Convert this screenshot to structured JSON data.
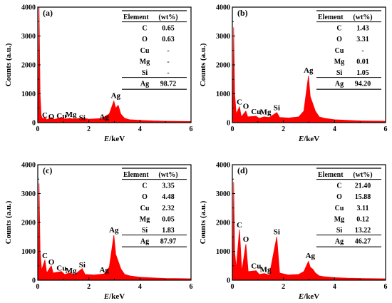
{
  "chart_data": [
    {
      "type": "area",
      "label": "(a)",
      "xlabel_italic": "E",
      "xlabel_unit": "/keV",
      "ylabel": "Counts (a.u.)",
      "xlim": [
        0,
        6
      ],
      "ylim": [
        0,
        4000
      ],
      "xticks": [
        0,
        2,
        4,
        6
      ],
      "yticks": [
        0,
        1000,
        2000,
        3000,
        4000
      ],
      "color": "#ff0000",
      "spectrum": [
        [
          0,
          0
        ],
        [
          0.02,
          200
        ],
        [
          0.05,
          4000
        ],
        [
          0.09,
          1000
        ],
        [
          0.13,
          250
        ],
        [
          0.2,
          120
        ],
        [
          0.28,
          200
        ],
        [
          0.35,
          100
        ],
        [
          0.53,
          180
        ],
        [
          0.65,
          110
        ],
        [
          0.93,
          180
        ],
        [
          1.05,
          120
        ],
        [
          1.25,
          150
        ],
        [
          1.4,
          120
        ],
        [
          1.74,
          160
        ],
        [
          2.0,
          120
        ],
        [
          2.5,
          140
        ],
        [
          2.8,
          300
        ],
        [
          2.98,
          750
        ],
        [
          3.05,
          500
        ],
        [
          3.15,
          600
        ],
        [
          3.25,
          300
        ],
        [
          3.4,
          150
        ],
        [
          3.6,
          100
        ],
        [
          4,
          80
        ],
        [
          4.5,
          60
        ],
        [
          5,
          50
        ],
        [
          6,
          40
        ]
      ],
      "peaks": [
        {
          "text": "C",
          "x": 0.28,
          "y": 120
        },
        {
          "text": "O",
          "x": 0.53,
          "y": 80
        },
        {
          "text": "Cu",
          "x": 0.93,
          "y": 100
        },
        {
          "text": "Mg",
          "x": 1.3,
          "y": 150
        },
        {
          "text": "Si",
          "x": 1.74,
          "y": 40
        },
        {
          "text": "Ag",
          "x": 2.6,
          "y": 60
        },
        {
          "text": "Ag",
          "x": 3.05,
          "y": 800
        }
      ],
      "table": {
        "headers": [
          "Element",
          "(wt%)"
        ],
        "rows": [
          [
            "C",
            "0.65"
          ],
          [
            "O",
            "0.63"
          ],
          [
            "Cu",
            "-"
          ],
          [
            "Mg",
            "-"
          ],
          [
            "Si",
            "-"
          ],
          [
            "Ag",
            "98.72"
          ]
        ]
      }
    },
    {
      "type": "area",
      "label": "(b)",
      "xlabel_italic": "E",
      "xlabel_unit": "/keV",
      "ylabel": "Counts (a.u.)",
      "xlim": [
        0,
        6
      ],
      "ylim": [
        0,
        4000
      ],
      "xticks": [
        0,
        2,
        4,
        6
      ],
      "yticks": [
        0,
        1000,
        2000,
        3000,
        4000
      ],
      "color": "#ff0000",
      "spectrum": [
        [
          0,
          0
        ],
        [
          0.02,
          200
        ],
        [
          0.05,
          3300
        ],
        [
          0.09,
          1000
        ],
        [
          0.15,
          300
        ],
        [
          0.28,
          550
        ],
        [
          0.35,
          200
        ],
        [
          0.53,
          400
        ],
        [
          0.6,
          200
        ],
        [
          0.93,
          220
        ],
        [
          1.05,
          150
        ],
        [
          1.25,
          200
        ],
        [
          1.45,
          180
        ],
        [
          1.74,
          350
        ],
        [
          1.85,
          180
        ],
        [
          2.2,
          160
        ],
        [
          2.6,
          200
        ],
        [
          2.8,
          400
        ],
        [
          2.98,
          1620
        ],
        [
          3.05,
          900
        ],
        [
          3.15,
          650
        ],
        [
          3.25,
          400
        ],
        [
          3.4,
          200
        ],
        [
          3.6,
          150
        ],
        [
          4,
          100
        ],
        [
          4.5,
          80
        ],
        [
          5,
          60
        ],
        [
          6,
          50
        ]
      ],
      "peaks": [
        {
          "text": "C",
          "x": 0.28,
          "y": 580
        },
        {
          "text": "O",
          "x": 0.53,
          "y": 430
        },
        {
          "text": "Cu",
          "x": 0.93,
          "y": 250
        },
        {
          "text": "Mg",
          "x": 1.3,
          "y": 240
        },
        {
          "text": "Si",
          "x": 1.74,
          "y": 380
        },
        {
          "text": "Ag",
          "x": 2.98,
          "y": 1680
        }
      ],
      "table": {
        "headers": [
          "Element",
          "(wt%)"
        ],
        "rows": [
          [
            "C",
            "1.43"
          ],
          [
            "O",
            "3.31"
          ],
          [
            "Cu",
            "-"
          ],
          [
            "Mg",
            "0.01"
          ],
          [
            "Si",
            "1.05"
          ],
          [
            "Ag",
            "94.20"
          ]
        ]
      }
    },
    {
      "type": "area",
      "label": "(c)",
      "xlabel_italic": "E",
      "xlabel_unit": "/keV",
      "ylabel": "Counts (a.u.)",
      "xlim": [
        0,
        6
      ],
      "ylim": [
        0,
        4000
      ],
      "xticks": [
        0,
        2,
        4,
        6
      ],
      "yticks": [
        0,
        1000,
        2000,
        3000,
        4000
      ],
      "color": "#ff0000",
      "spectrum": [
        [
          0,
          0
        ],
        [
          0.02,
          200
        ],
        [
          0.05,
          3350
        ],
        [
          0.09,
          1000
        ],
        [
          0.15,
          350
        ],
        [
          0.28,
          700
        ],
        [
          0.35,
          250
        ],
        [
          0.53,
          500
        ],
        [
          0.6,
          250
        ],
        [
          0.93,
          300
        ],
        [
          1.05,
          200
        ],
        [
          1.25,
          250
        ],
        [
          1.45,
          200
        ],
        [
          1.74,
          400
        ],
        [
          1.85,
          200
        ],
        [
          2.2,
          180
        ],
        [
          2.6,
          220
        ],
        [
          2.8,
          450
        ],
        [
          2.98,
          1560
        ],
        [
          3.05,
          900
        ],
        [
          3.15,
          650
        ],
        [
          3.25,
          400
        ],
        [
          3.4,
          200
        ],
        [
          3.6,
          150
        ],
        [
          4,
          100
        ],
        [
          4.5,
          80
        ],
        [
          5,
          60
        ],
        [
          6,
          50
        ]
      ],
      "peaks": [
        {
          "text": "C",
          "x": 0.28,
          "y": 720
        },
        {
          "text": "O",
          "x": 0.53,
          "y": 500
        },
        {
          "text": "Cu",
          "x": 0.93,
          "y": 280
        },
        {
          "text": "Mg",
          "x": 1.3,
          "y": 200
        },
        {
          "text": "Si",
          "x": 1.74,
          "y": 400
        },
        {
          "text": "Ag",
          "x": 2.6,
          "y": 220
        },
        {
          "text": "Ag",
          "x": 2.98,
          "y": 1600
        }
      ],
      "table": {
        "headers": [
          "Element",
          "(wt%)"
        ],
        "rows": [
          [
            "C",
            "3.35"
          ],
          [
            "O",
            "4.48"
          ],
          [
            "Cu",
            "2.32"
          ],
          [
            "Mg",
            "0.05"
          ],
          [
            "Si",
            "1.83"
          ],
          [
            "Ag",
            "87.97"
          ]
        ]
      }
    },
    {
      "type": "area",
      "label": "(d)",
      "xlabel_italic": "E",
      "xlabel_unit": "/keV",
      "ylabel": "Counts (a.u.)",
      "xlim": [
        0,
        6
      ],
      "ylim": [
        0,
        4000
      ],
      "xticks": [
        0,
        2,
        4,
        6
      ],
      "yticks": [
        0,
        1000,
        2000,
        3000,
        4000
      ],
      "color": "#ff0000",
      "spectrum": [
        [
          0,
          0
        ],
        [
          0.02,
          200
        ],
        [
          0.05,
          3400
        ],
        [
          0.09,
          1000
        ],
        [
          0.15,
          400
        ],
        [
          0.28,
          1750
        ],
        [
          0.37,
          300
        ],
        [
          0.53,
          1250
        ],
        [
          0.62,
          300
        ],
        [
          0.93,
          330
        ],
        [
          1.05,
          200
        ],
        [
          1.25,
          230
        ],
        [
          1.45,
          180
        ],
        [
          1.74,
          1500
        ],
        [
          1.85,
          250
        ],
        [
          2.2,
          180
        ],
        [
          2.6,
          200
        ],
        [
          2.8,
          300
        ],
        [
          2.98,
          650
        ],
        [
          3.05,
          450
        ],
        [
          3.15,
          380
        ],
        [
          3.25,
          250
        ],
        [
          3.4,
          150
        ],
        [
          3.6,
          120
        ],
        [
          4,
          90
        ],
        [
          4.5,
          70
        ],
        [
          5,
          60
        ],
        [
          6,
          50
        ]
      ],
      "peaks": [
        {
          "text": "C",
          "x": 0.28,
          "y": 1780
        },
        {
          "text": "O",
          "x": 0.53,
          "y": 1280
        },
        {
          "text": "Cu",
          "x": 0.93,
          "y": 360
        },
        {
          "text": "Mg",
          "x": 1.3,
          "y": 240
        },
        {
          "text": "Si",
          "x": 1.74,
          "y": 1540
        },
        {
          "text": "Ag",
          "x": 3.05,
          "y": 720
        }
      ],
      "table": {
        "headers": [
          "Element",
          "(wt%)"
        ],
        "rows": [
          [
            "C",
            "21.40"
          ],
          [
            "O",
            "15.88"
          ],
          [
            "Cu",
            "3.11"
          ],
          [
            "Mg",
            "0.12"
          ],
          [
            "Si",
            "13.22"
          ],
          [
            "Ag",
            "46.27"
          ]
        ]
      }
    }
  ]
}
